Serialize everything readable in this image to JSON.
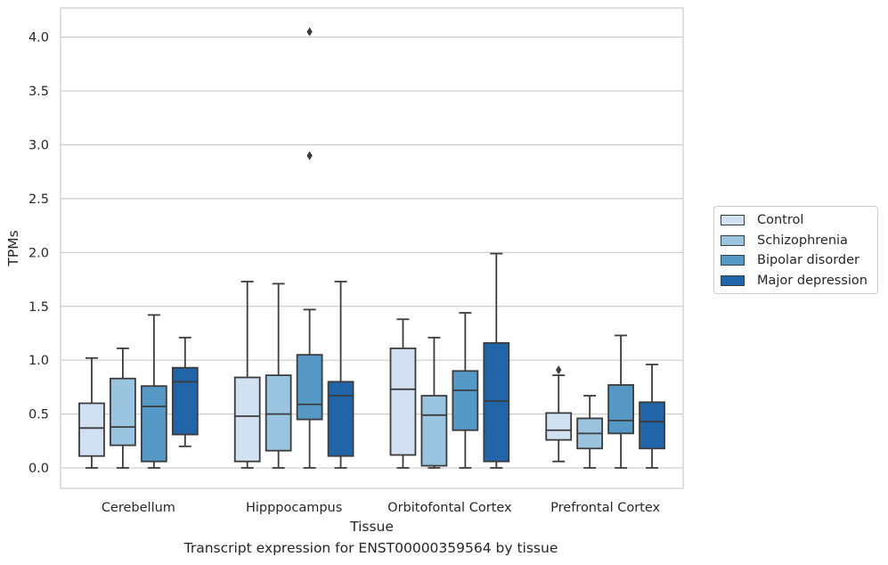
{
  "chart_data": {
    "type": "boxplot",
    "xlabel": "Tissue",
    "ylabel": "TPMs",
    "caption": "Transcript expression for ENST00000359564 by tissue",
    "categories": [
      "Cerebellum",
      "Hipppocampus",
      "Orbitofontal Cortex",
      "Prefrontal Cortex"
    ],
    "ylim": [
      -0.19,
      4.27
    ],
    "yticks": [
      0.0,
      0.5,
      1.0,
      1.5,
      2.0,
      2.5,
      3.0,
      3.5,
      4.0
    ],
    "ytick_labels": [
      "0.0",
      "0.5",
      "1.0",
      "1.5",
      "2.0",
      "2.5",
      "3.0",
      "3.5",
      "4.0"
    ],
    "grid": "horizontal",
    "legend_position": "right",
    "series": [
      {
        "name": "Control",
        "color": "#d1e1f1",
        "boxes": [
          {
            "whislo": 0.0,
            "q1": 0.11,
            "med": 0.37,
            "q3": 0.6,
            "whishi": 1.02,
            "fliers": []
          },
          {
            "whislo": 0.0,
            "q1": 0.06,
            "med": 0.48,
            "q3": 0.84,
            "whishi": 1.73,
            "fliers": []
          },
          {
            "whislo": 0.0,
            "q1": 0.12,
            "med": 0.73,
            "q3": 1.11,
            "whishi": 1.38,
            "fliers": []
          },
          {
            "whislo": 0.06,
            "q1": 0.26,
            "med": 0.35,
            "q3": 0.51,
            "whishi": 0.86,
            "fliers": [
              0.91
            ]
          }
        ]
      },
      {
        "name": "Schizophrenia",
        "color": "#9ac4df",
        "boxes": [
          {
            "whislo": 0.0,
            "q1": 0.21,
            "med": 0.38,
            "q3": 0.83,
            "whishi": 1.11,
            "fliers": []
          },
          {
            "whislo": 0.0,
            "q1": 0.16,
            "med": 0.5,
            "q3": 0.86,
            "whishi": 1.71,
            "fliers": []
          },
          {
            "whislo": 0.0,
            "q1": 0.02,
            "med": 0.49,
            "q3": 0.67,
            "whishi": 1.21,
            "fliers": []
          },
          {
            "whislo": 0.0,
            "q1": 0.18,
            "med": 0.32,
            "q3": 0.46,
            "whishi": 0.67,
            "fliers": []
          }
        ]
      },
      {
        "name": "Bipolar disorder",
        "color": "#5597c5",
        "boxes": [
          {
            "whislo": 0.0,
            "q1": 0.06,
            "med": 0.57,
            "q3": 0.76,
            "whishi": 1.42,
            "fliers": []
          },
          {
            "whislo": 0.0,
            "q1": 0.45,
            "med": 0.59,
            "q3": 1.05,
            "whishi": 1.47,
            "fliers": [
              2.9,
              4.05
            ]
          },
          {
            "whislo": 0.0,
            "q1": 0.35,
            "med": 0.72,
            "q3": 0.9,
            "whishi": 1.44,
            "fliers": []
          },
          {
            "whislo": 0.0,
            "q1": 0.32,
            "med": 0.44,
            "q3": 0.77,
            "whishi": 1.23,
            "fliers": []
          }
        ]
      },
      {
        "name": "Major depression",
        "color": "#2165a8",
        "boxes": [
          {
            "whislo": 0.2,
            "q1": 0.31,
            "med": 0.8,
            "q3": 0.93,
            "whishi": 1.21,
            "fliers": []
          },
          {
            "whislo": 0.0,
            "q1": 0.11,
            "med": 0.67,
            "q3": 0.8,
            "whishi": 1.73,
            "fliers": []
          },
          {
            "whislo": 0.0,
            "q1": 0.06,
            "med": 0.62,
            "q3": 1.16,
            "whishi": 1.99,
            "fliers": []
          },
          {
            "whislo": 0.0,
            "q1": 0.18,
            "med": 0.43,
            "q3": 0.61,
            "whishi": 0.96,
            "fliers": []
          }
        ]
      }
    ]
  }
}
